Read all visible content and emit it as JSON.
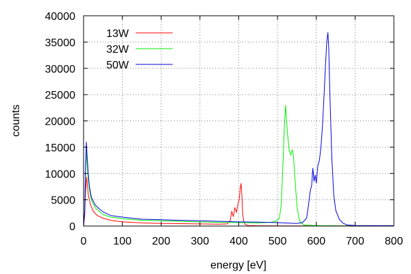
{
  "chart_data": {
    "type": "line",
    "xlabel": "energy [eV]",
    "ylabel": "counts",
    "xlim": [
      0,
      800
    ],
    "ylim": [
      0,
      40000
    ],
    "xticks": [
      0,
      100,
      200,
      300,
      400,
      500,
      600,
      700,
      800
    ],
    "yticks": [
      0,
      5000,
      10000,
      15000,
      20000,
      25000,
      30000,
      35000,
      40000
    ],
    "grid": true,
    "legend_position": "top-left",
    "series": [
      {
        "name": "13W",
        "color": "#ff0000",
        "x": [
          0,
          3,
          5,
          8,
          12,
          18,
          25,
          35,
          50,
          70,
          100,
          150,
          200,
          250,
          300,
          350,
          370,
          378,
          382,
          386,
          390,
          394,
          398,
          401,
          404,
          406,
          408,
          410,
          413,
          417,
          425,
          450,
          500,
          600,
          700,
          800
        ],
        "y": [
          0,
          2000,
          6500,
          9300,
          6000,
          4000,
          2800,
          2000,
          1500,
          1100,
          800,
          600,
          500,
          450,
          400,
          350,
          400,
          1000,
          2800,
          1800,
          3500,
          2600,
          4200,
          5000,
          7300,
          8100,
          6000,
          2500,
          800,
          300,
          100,
          50,
          40,
          30,
          20,
          10
        ]
      },
      {
        "name": "32W",
        "color": "#00ee00",
        "x": [
          0,
          3,
          5,
          7,
          9,
          12,
          15,
          20,
          30,
          40,
          50,
          70,
          100,
          150,
          200,
          250,
          300,
          350,
          400,
          450,
          480,
          495,
          505,
          510,
          514,
          518,
          521,
          523,
          526,
          530,
          534,
          538,
          541,
          545,
          550,
          555,
          560,
          570,
          600,
          650,
          700,
          800
        ],
        "y": [
          0,
          3000,
          10000,
          14500,
          12000,
          9000,
          7000,
          5000,
          3500,
          2800,
          2200,
          1700,
          1400,
          1100,
          1000,
          900,
          800,
          700,
          650,
          600,
          700,
          900,
          1500,
          4500,
          12000,
          19500,
          23000,
          20500,
          17500,
          14500,
          13500,
          14500,
          13500,
          9000,
          4000,
          1500,
          600,
          200,
          80,
          50,
          30,
          20
        ]
      },
      {
        "name": "50W",
        "color": "#0000dd",
        "x": [
          0,
          3,
          5,
          7,
          9,
          12,
          15,
          20,
          30,
          40,
          50,
          70,
          100,
          150,
          200,
          250,
          300,
          350,
          400,
          450,
          500,
          530,
          550,
          565,
          575,
          580,
          584,
          588,
          591,
          594,
          597,
          600,
          604,
          608,
          612,
          616,
          620,
          624,
          627,
          630,
          632,
          635,
          640,
          645,
          650,
          660,
          670,
          680,
          700,
          750,
          800
        ],
        "y": [
          0,
          3000,
          11000,
          16000,
          13500,
          10000,
          7500,
          5500,
          4000,
          3300,
          2700,
          2000,
          1700,
          1300,
          1200,
          1100,
          1000,
          900,
          800,
          750,
          650,
          550,
          500,
          700,
          1500,
          4000,
          6500,
          7800,
          11000,
          8500,
          9700,
          8200,
          11500,
          12500,
          15000,
          19000,
          25000,
          31000,
          35000,
          36800,
          34000,
          25000,
          13000,
          6000,
          3000,
          1200,
          500,
          200,
          100,
          80,
          60
        ]
      }
    ]
  }
}
